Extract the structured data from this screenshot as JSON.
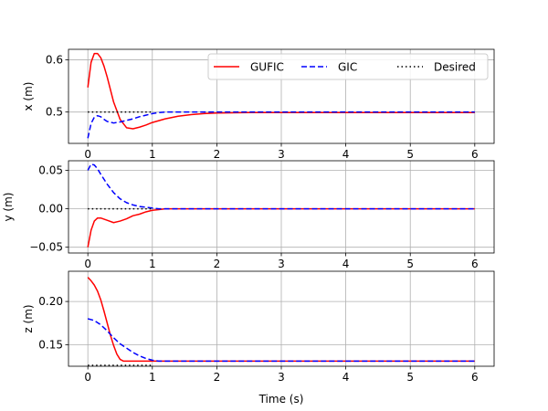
{
  "legend": {
    "entries": [
      {
        "label": "GUFIC",
        "color": "#ff0000",
        "dash": "solid"
      },
      {
        "label": "GIC",
        "color": "#0000ff",
        "dash": "dashed"
      },
      {
        "label": "Desired",
        "color": "#000000",
        "dash": "dotted"
      }
    ],
    "placement": "top-right of first subplot, three columns"
  },
  "chart_data": [
    {
      "type": "line",
      "title": "",
      "xlabel": "",
      "ylabel": "x (m)",
      "xlim": [
        -0.3,
        6.3
      ],
      "ylim": [
        0.44,
        0.62
      ],
      "xticks": [
        0,
        1,
        2,
        3,
        4,
        5,
        6
      ],
      "xtick_labels": [
        "0",
        "1",
        "2",
        "3",
        "4",
        "5",
        "6"
      ],
      "yticks": [
        0.5,
        0.6
      ],
      "ytick_labels": [
        "0.5",
        "0.6"
      ],
      "grid": true,
      "legend": true,
      "series": [
        {
          "name": "GUFIC",
          "color": "#ff0000",
          "dash": "solid",
          "x": [
            0,
            0.05,
            0.1,
            0.15,
            0.2,
            0.25,
            0.3,
            0.4,
            0.5,
            0.6,
            0.7,
            0.8,
            0.9,
            1.0,
            1.2,
            1.4,
            1.6,
            1.8,
            2.0,
            2.5,
            3,
            4,
            5,
            6
          ],
          "y": [
            0.547,
            0.595,
            0.612,
            0.612,
            0.604,
            0.588,
            0.567,
            0.519,
            0.486,
            0.47,
            0.468,
            0.471,
            0.475,
            0.48,
            0.487,
            0.492,
            0.495,
            0.497,
            0.498,
            0.499,
            0.499,
            0.499,
            0.499,
            0.499
          ]
        },
        {
          "name": "GIC",
          "color": "#0000ff",
          "dash": "dashed",
          "x": [
            0,
            0.05,
            0.1,
            0.15,
            0.2,
            0.25,
            0.3,
            0.4,
            0.5,
            0.6,
            0.7,
            0.8,
            0.9,
            1.0,
            1.1,
            1.2,
            1.5,
            2.0,
            3,
            4,
            5,
            6
          ],
          "y": [
            0.45,
            0.478,
            0.49,
            0.493,
            0.491,
            0.486,
            0.482,
            0.479,
            0.481,
            0.484,
            0.487,
            0.491,
            0.494,
            0.497,
            0.499,
            0.5,
            0.5,
            0.5,
            0.5,
            0.5,
            0.5,
            0.5
          ]
        },
        {
          "name": "Desired",
          "color": "#000000",
          "dash": "dotted",
          "x": [
            0,
            1.0
          ],
          "y": [
            0.5,
            0.5
          ]
        }
      ]
    },
    {
      "type": "line",
      "title": "",
      "xlabel": "",
      "ylabel": "y (m)",
      "xlim": [
        -0.3,
        6.3
      ],
      "ylim": [
        -0.0575,
        0.0625
      ],
      "xticks": [
        0,
        1,
        2,
        3,
        4,
        5,
        6
      ],
      "xtick_labels": [
        "0",
        "1",
        "2",
        "3",
        "4",
        "5",
        "6"
      ],
      "yticks": [
        -0.05,
        0.0,
        0.05
      ],
      "ytick_labels": [
        "−0.05",
        "0.00",
        "0.05"
      ],
      "grid": true,
      "legend": false,
      "series": [
        {
          "name": "GUFIC",
          "color": "#ff0000",
          "dash": "solid",
          "x": [
            0,
            0.05,
            0.1,
            0.15,
            0.2,
            0.3,
            0.4,
            0.5,
            0.6,
            0.7,
            0.8,
            0.9,
            1.0,
            1.1,
            1.2,
            1.5,
            2,
            3,
            4,
            5,
            6
          ],
          "y": [
            -0.05,
            -0.028,
            -0.016,
            -0.012,
            -0.012,
            -0.015,
            -0.018,
            -0.016,
            -0.013,
            -0.009,
            -0.007,
            -0.004,
            -0.002,
            -0.001,
            0.0,
            0.0,
            0.0,
            0.0,
            0.0,
            0.0,
            0.0
          ]
        },
        {
          "name": "GIC",
          "color": "#0000ff",
          "dash": "dashed",
          "x": [
            0,
            0.05,
            0.1,
            0.15,
            0.2,
            0.3,
            0.4,
            0.5,
            0.6,
            0.7,
            0.8,
            0.9,
            1.0,
            1.1,
            1.2,
            1.5,
            2,
            3,
            4,
            5,
            6
          ],
          "y": [
            0.05,
            0.058,
            0.057,
            0.052,
            0.045,
            0.032,
            0.021,
            0.013,
            0.008,
            0.005,
            0.003,
            0.002,
            0.001,
            0.0,
            0.0,
            0.0,
            0.0,
            0.0,
            0.0,
            0.0,
            0.0
          ]
        },
        {
          "name": "Desired",
          "color": "#000000",
          "dash": "dotted",
          "x": [
            0,
            1.0
          ],
          "y": [
            0.0,
            0.0
          ]
        }
      ]
    },
    {
      "type": "line",
      "title": "",
      "xlabel": "Time (s)",
      "ylabel": "z (m)",
      "xlim": [
        -0.3,
        6.3
      ],
      "ylim": [
        0.125,
        0.235
      ],
      "xticks": [
        0,
        1,
        2,
        3,
        4,
        5,
        6
      ],
      "xtick_labels": [
        "0",
        "1",
        "2",
        "3",
        "4",
        "5",
        "6"
      ],
      "yticks": [
        0.15,
        0.2
      ],
      "ytick_labels": [
        "0.15",
        "0.20"
      ],
      "grid": true,
      "legend": false,
      "series": [
        {
          "name": "GUFIC",
          "color": "#ff0000",
          "dash": "solid",
          "x": [
            0,
            0.05,
            0.1,
            0.15,
            0.2,
            0.25,
            0.3,
            0.35,
            0.4,
            0.45,
            0.5,
            0.55,
            0.6,
            1.0,
            2,
            3,
            4,
            5,
            6
          ],
          "y": [
            0.228,
            0.224,
            0.219,
            0.212,
            0.202,
            0.189,
            0.175,
            0.161,
            0.149,
            0.139,
            0.133,
            0.131,
            0.131,
            0.131,
            0.131,
            0.131,
            0.131,
            0.131,
            0.131
          ]
        },
        {
          "name": "GIC",
          "color": "#0000ff",
          "dash": "dashed",
          "x": [
            0,
            0.1,
            0.2,
            0.3,
            0.4,
            0.5,
            0.6,
            0.7,
            0.8,
            0.9,
            1.0,
            1.1,
            1.2,
            1.5,
            2,
            3,
            4,
            5,
            6
          ],
          "y": [
            0.18,
            0.178,
            0.173,
            0.166,
            0.158,
            0.151,
            0.146,
            0.141,
            0.137,
            0.134,
            0.132,
            0.131,
            0.131,
            0.131,
            0.131,
            0.131,
            0.131,
            0.131,
            0.131
          ]
        },
        {
          "name": "Desired",
          "color": "#000000",
          "dash": "dotted",
          "x": [
            0,
            1.0
          ],
          "y": [
            0.126,
            0.126
          ]
        }
      ]
    }
  ]
}
